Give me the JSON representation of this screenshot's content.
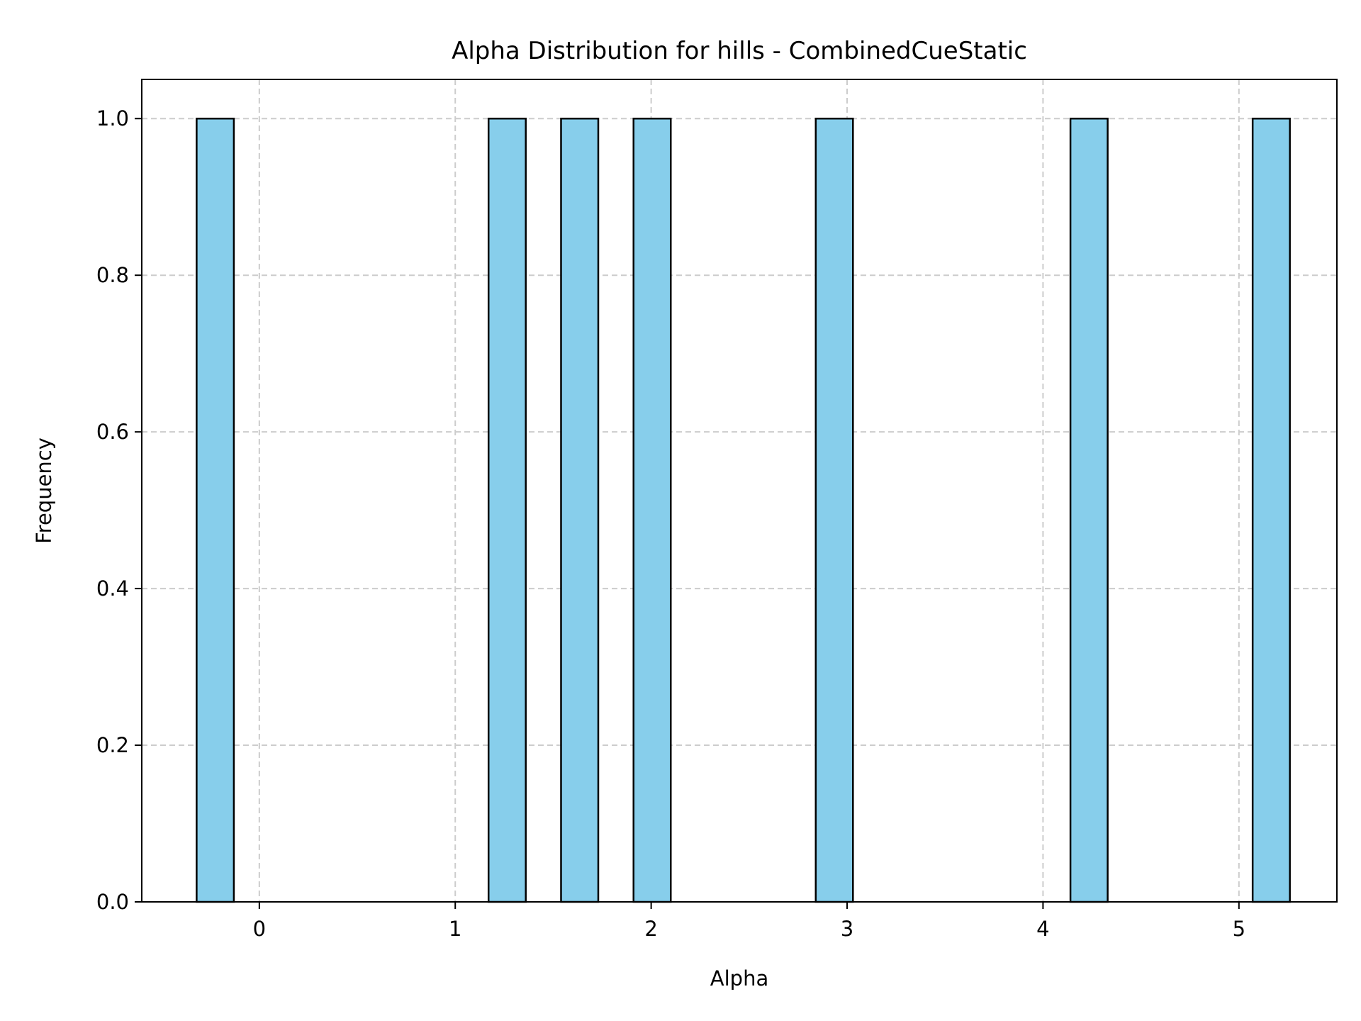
{
  "chart_data": {
    "type": "bar",
    "title": "Alpha Distribution for hills - CombinedCueStatic",
    "xlabel": "Alpha",
    "ylabel": "Frequency",
    "xlim": [
      -0.6,
      5.5
    ],
    "ylim": [
      0,
      1.05
    ],
    "x_ticks": [
      0,
      1,
      2,
      3,
      4,
      5
    ],
    "x_tick_labels": [
      "0",
      "1",
      "2",
      "3",
      "4",
      "5"
    ],
    "y_ticks": [
      0,
      0.2,
      0.4,
      0.6,
      0.8,
      1.0
    ],
    "y_tick_labels": [
      "0.0",
      "0.2",
      "0.4",
      "0.6",
      "0.8",
      "1.0"
    ],
    "grid": true,
    "bars": [
      {
        "x_start": -0.32,
        "x_end": -0.13,
        "value": 1.0
      },
      {
        "x_start": 1.17,
        "x_end": 1.36,
        "value": 1.0
      },
      {
        "x_start": 1.54,
        "x_end": 1.73,
        "value": 1.0
      },
      {
        "x_start": 1.91,
        "x_end": 2.1,
        "value": 1.0
      },
      {
        "x_start": 2.84,
        "x_end": 3.03,
        "value": 1.0
      },
      {
        "x_start": 4.14,
        "x_end": 4.33,
        "value": 1.0
      },
      {
        "x_start": 5.07,
        "x_end": 5.26,
        "value": 1.0
      }
    ],
    "colors": {
      "bar_fill": "#87ceeb",
      "bar_edge": "#000000",
      "grid": "#cccccc",
      "axes": "#000000"
    }
  }
}
